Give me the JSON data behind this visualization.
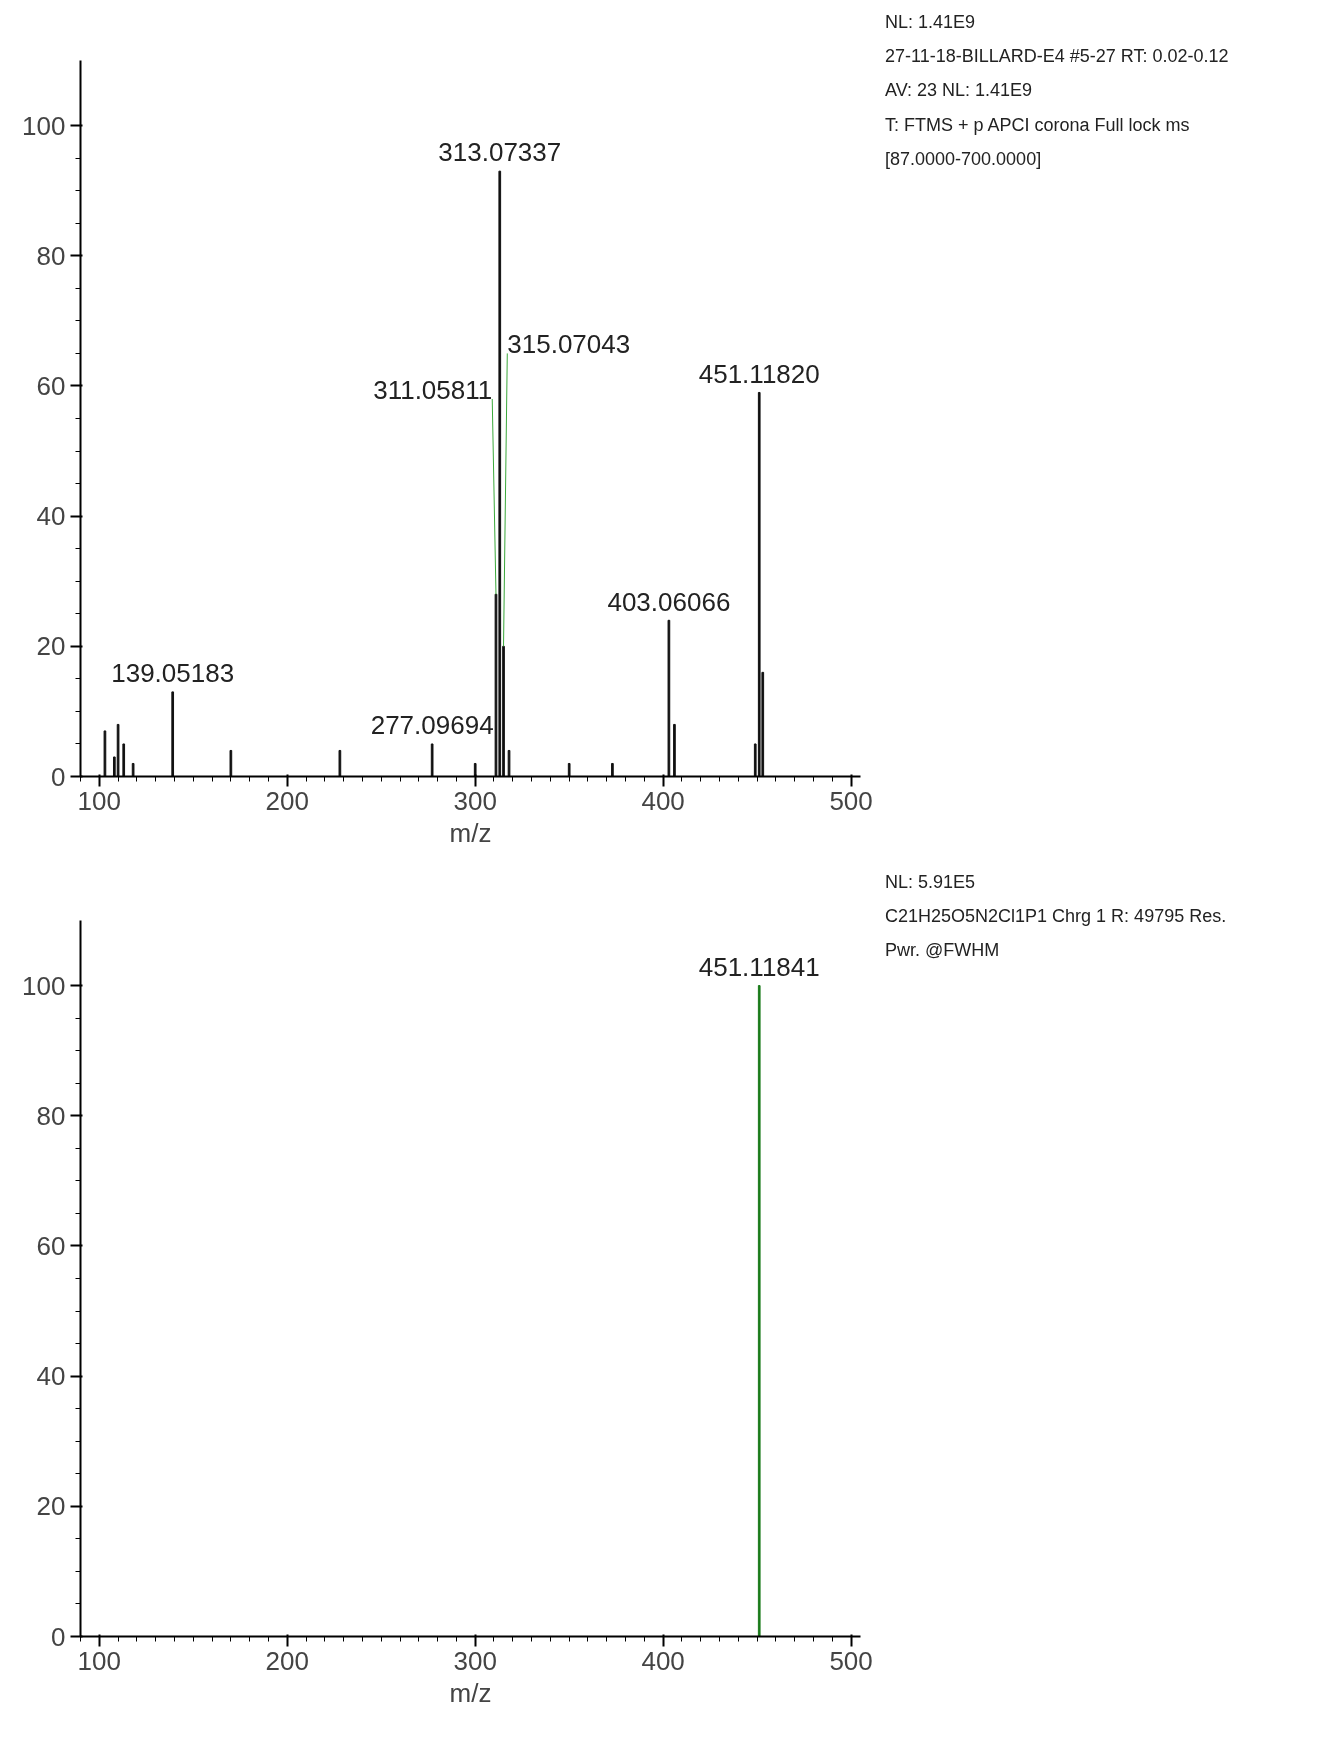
{
  "chart_data": [
    {
      "type": "bar",
      "xlabel": "m/z",
      "color": "#111111",
      "x": [
        103,
        108,
        110,
        113,
        118,
        139.05183,
        170,
        228,
        277.09694,
        300,
        311.05811,
        313.07337,
        315.07043,
        318,
        350,
        373,
        403.06066,
        406,
        449,
        451.1182,
        453
      ],
      "values": [
        7,
        3,
        8,
        5,
        2,
        13,
        4,
        4,
        5,
        2,
        28,
        93,
        20,
        4,
        2,
        2,
        24,
        8,
        5,
        59,
        16
      ],
      "xlim": [
        90,
        505
      ],
      "ylim": [
        0,
        110
      ],
      "xticks": [
        100,
        200,
        300,
        400,
        500
      ],
      "yticks": [
        0,
        20,
        40,
        60,
        80,
        100
      ],
      "annotations": [
        "NL: 1.41E9",
        "27-11-18-BILLARD-E4 #5-27  RT: 0.02-0.12",
        "AV: 23 NL: 1.41E9",
        "T: FTMS + p APCI corona Full lock ms",
        "[87.0000-700.0000]",
        {
          "text": "139.05183",
          "x": 139.05183,
          "y": 13
        },
        {
          "text": "277.09694",
          "x": 277.09694,
          "y": 5
        },
        {
          "text": "311.05811",
          "x": 311.05811,
          "y": 28
        },
        {
          "text": "313.07337",
          "x": 313.07337,
          "y": 93
        },
        {
          "text": "315.07043",
          "x": 315.07043,
          "y": 20
        },
        {
          "text": "403.06066",
          "x": 403.06066,
          "y": 24
        },
        {
          "text": "451.11820",
          "x": 451.1182,
          "y": 59
        }
      ]
    },
    {
      "type": "bar",
      "xlabel": "m/z",
      "color": "#1a7a1a",
      "x": [
        451.11841
      ],
      "values": [
        100
      ],
      "xlim": [
        90,
        505
      ],
      "ylim": [
        0,
        110
      ],
      "xticks": [
        100,
        200,
        300,
        400,
        500
      ],
      "yticks": [
        0,
        20,
        40,
        60,
        80,
        100
      ],
      "annotations": [
        "NL: 5.91E5",
        "C21H25O5N2Cl1P1   Chrg 1 R: 49795 Res.",
        "Pwr. @FWHM",
        {
          "text": "451.11841",
          "x": 451.11841,
          "y": 100
        }
      ]
    }
  ]
}
